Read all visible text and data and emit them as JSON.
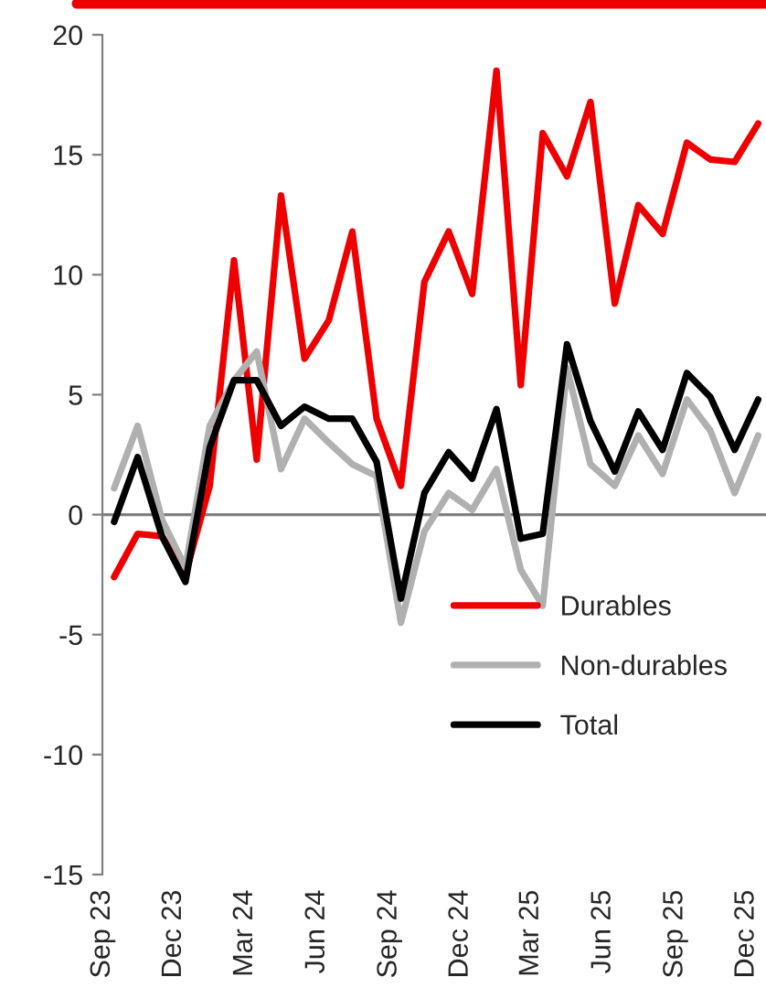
{
  "chart_data": {
    "type": "line",
    "x": [
      "2023-09-16",
      "2023-10-16",
      "2023-11-16",
      "2023-12-16",
      "2024-01-16",
      "2024-02-16",
      "2024-03-16",
      "2024-04-16",
      "2024-05-16",
      "2024-06-16",
      "2024-07-16",
      "2024-08-16",
      "2024-09-16",
      "2024-10-16",
      "2024-11-16",
      "2024-12-16",
      "2025-01-16",
      "2025-02-16",
      "2025-03-16",
      "2025-04-16",
      "2025-05-16",
      "2025-06-16",
      "2025-07-16",
      "2025-08-16",
      "2025-09-16",
      "2025-10-16",
      "2025-11-16",
      "2025-12-16"
    ],
    "series": [
      {
        "name": "Durables",
        "color": "#ee0000",
        "values": [
          -2.6,
          -0.8,
          -0.9,
          -2.5,
          1.2,
          10.6,
          2.3,
          13.3,
          6.5,
          8.1,
          11.8,
          4.0,
          1.2,
          9.7,
          11.8,
          9.2,
          18.5,
          5.4,
          15.9,
          14.1,
          17.2,
          8.8,
          12.9,
          11.7,
          15.5,
          14.8,
          14.7,
          16.3
        ]
      },
      {
        "name": "Non-durables",
        "color": "#b0b0b0",
        "values": [
          1.1,
          3.7,
          -0.2,
          -2.2,
          3.7,
          5.6,
          6.8,
          1.9,
          4.0,
          3.0,
          2.1,
          1.6,
          -4.5,
          -0.7,
          0.9,
          0.2,
          1.9,
          -2.3,
          -3.8,
          6.1,
          2.1,
          1.2,
          3.3,
          1.7,
          4.8,
          3.5,
          0.9,
          3.3
        ]
      },
      {
        "name": "Total",
        "color": "#000000",
        "values": [
          -0.3,
          2.4,
          -0.9,
          -2.8,
          2.8,
          5.6,
          5.6,
          3.7,
          4.5,
          4.0,
          4.0,
          2.2,
          -3.5,
          0.9,
          2.6,
          1.5,
          4.4,
          -1.0,
          -0.8,
          7.1,
          3.9,
          1.8,
          4.3,
          2.7,
          5.9,
          4.9,
          2.7,
          4.8
        ]
      }
    ],
    "xlim": [
      "2023-09-01",
      "2025-12-26"
    ],
    "xticks": [
      {
        "value": "2023-09-01",
        "label": "Sep 23"
      },
      {
        "value": "2023-12-01",
        "label": "Dec 23"
      },
      {
        "value": "2024-03-01",
        "label": "Mar 24"
      },
      {
        "value": "2024-06-01",
        "label": "Jun 24"
      },
      {
        "value": "2024-09-01",
        "label": "Sep 24"
      },
      {
        "value": "2024-12-01",
        "label": "Dec 24"
      },
      {
        "value": "2025-03-01",
        "label": "Mar 25"
      },
      {
        "value": "2025-06-01",
        "label": "Jun 25"
      },
      {
        "value": "2025-09-01",
        "label": "Sep 25"
      },
      {
        "value": "2025-12-01",
        "label": "Dec 25"
      }
    ],
    "ylim": [
      -15,
      20
    ],
    "yticks": [
      -15,
      -10,
      -5,
      0,
      5,
      10,
      15,
      20
    ],
    "ref_lines": [
      {
        "axis": "y",
        "value": 0,
        "color": "#808080"
      }
    ],
    "grid": false,
    "legend": "bottom right",
    "marker": "none",
    "line_style": "solid"
  }
}
